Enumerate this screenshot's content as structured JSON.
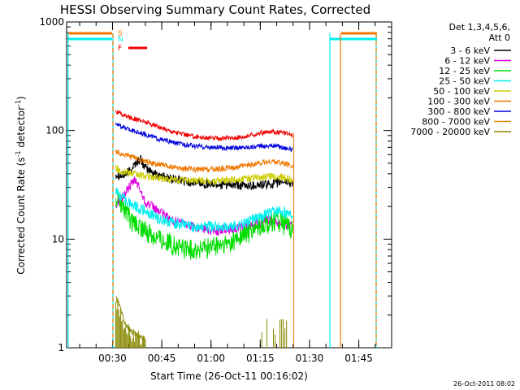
{
  "chart_data": {
    "type": "line",
    "title": "HESSI Observing Summary Count Rates, Corrected",
    "xlabel": "Start Time (26-Oct-11 00:16:02)",
    "ylabel_main": "Corrected Count Rate (s",
    "ylabel_sup1": "-1",
    "ylabel_mid": " detector",
    "ylabel_sup2": "-1",
    "ylabel_end": ")",
    "yscale": "log",
    "ylim": [
      1,
      1000
    ],
    "xlim_minutes": [
      16.03,
      115
    ],
    "x_ticks": [
      {
        "label": "00:30",
        "min": 30
      },
      {
        "label": "00:45",
        "min": 45
      },
      {
        "label": "01:00",
        "min": 60
      },
      {
        "label": "01:15",
        "min": 75
      },
      {
        "label": "01:30",
        "min": 90
      },
      {
        "label": "01:45",
        "min": 105
      }
    ],
    "y_ticks": [
      {
        "label": "1",
        "v": 1
      },
      {
        "label": "10",
        "v": 10
      },
      {
        "label": "100",
        "v": 100
      },
      {
        "label": "1000",
        "v": 1000
      }
    ],
    "legend_header": [
      "Det 1,3,4,5,6,",
      "Att 0"
    ],
    "series": [
      {
        "name": "3 - 6 keV",
        "color": "#000000",
        "values": [
          [
            31,
            40
          ],
          [
            33,
            38
          ],
          [
            35,
            42
          ],
          [
            37,
            50
          ],
          [
            38.5,
            55
          ],
          [
            40,
            45
          ],
          [
            43,
            40
          ],
          [
            48,
            36
          ],
          [
            55,
            33
          ],
          [
            62,
            32
          ],
          [
            70,
            31
          ],
          [
            78,
            32
          ],
          [
            82,
            34
          ],
          [
            85,
            33
          ]
        ]
      },
      {
        "name": "6 - 12 keV",
        "color": "#dd00dd",
        "values": [
          [
            31,
            20
          ],
          [
            33,
            24
          ],
          [
            35,
            30
          ],
          [
            37,
            35
          ],
          [
            38.5,
            28
          ],
          [
            40,
            22
          ],
          [
            43,
            19
          ],
          [
            48,
            15
          ],
          [
            55,
            13
          ],
          [
            62,
            12
          ],
          [
            70,
            13
          ],
          [
            78,
            15
          ],
          [
            82,
            14
          ],
          [
            85,
            13
          ]
        ]
      },
      {
        "name": "12 - 25 keV",
        "color": "#00dd00",
        "values": [
          [
            31,
            25
          ],
          [
            33,
            20
          ],
          [
            36,
            14
          ],
          [
            40,
            12
          ],
          [
            45,
            10
          ],
          [
            50,
            8.5
          ],
          [
            55,
            8
          ],
          [
            60,
            8.5
          ],
          [
            65,
            9
          ],
          [
            70,
            11
          ],
          [
            75,
            13
          ],
          [
            79,
            15
          ],
          [
            82,
            14
          ],
          [
            85,
            12
          ]
        ]
      },
      {
        "name": "25 - 50 keV",
        "color": "#00eeee",
        "values": [
          [
            31,
            28
          ],
          [
            33,
            24
          ],
          [
            36,
            21
          ],
          [
            40,
            18
          ],
          [
            45,
            15
          ],
          [
            50,
            14
          ],
          [
            55,
            13
          ],
          [
            60,
            13
          ],
          [
            65,
            13
          ],
          [
            70,
            14
          ],
          [
            75,
            16
          ],
          [
            79,
            18
          ],
          [
            82,
            18
          ],
          [
            85,
            17
          ]
        ]
      },
      {
        "name": "50 - 100 keV",
        "color": "#cccc00",
        "values": [
          [
            31,
            45
          ],
          [
            33,
            42
          ],
          [
            36,
            40
          ],
          [
            40,
            38
          ],
          [
            45,
            36
          ],
          [
            50,
            35
          ],
          [
            55,
            35
          ],
          [
            60,
            34
          ],
          [
            65,
            35
          ],
          [
            70,
            36
          ],
          [
            75,
            37
          ],
          [
            79,
            38
          ],
          [
            82,
            37
          ],
          [
            85,
            35
          ]
        ]
      },
      {
        "name": "100 - 300 keV",
        "color": "#ee7700",
        "values": [
          [
            31,
            65
          ],
          [
            33,
            60
          ],
          [
            36,
            57
          ],
          [
            40,
            52
          ],
          [
            45,
            48
          ],
          [
            50,
            45
          ],
          [
            55,
            44
          ],
          [
            60,
            44
          ],
          [
            65,
            45
          ],
          [
            70,
            47
          ],
          [
            75,
            50
          ],
          [
            79,
            52
          ],
          [
            82,
            50
          ],
          [
            85,
            47
          ]
        ]
      },
      {
        "name": "300 - 800 keV",
        "color": "#0000dd",
        "values": [
          [
            31,
            115
          ],
          [
            33,
            108
          ],
          [
            36,
            100
          ],
          [
            40,
            92
          ],
          [
            45,
            82
          ],
          [
            50,
            76
          ],
          [
            55,
            72
          ],
          [
            60,
            70
          ],
          [
            65,
            69
          ],
          [
            70,
            70
          ],
          [
            75,
            72
          ],
          [
            79,
            73
          ],
          [
            82,
            70
          ],
          [
            85,
            67
          ]
        ]
      },
      {
        "name": "800 - 7000 keV",
        "color": "#dd8800",
        "values": [
          [
            31,
            1
          ],
          [
            31.01,
            1
          ]
        ]
      },
      {
        "name": "7000 - 20000 keV",
        "color": "#888800",
        "values": [
          [
            31,
            2.9
          ],
          [
            32,
            2.5
          ],
          [
            33,
            2
          ],
          [
            34,
            1.6
          ],
          [
            36,
            1.4
          ],
          [
            38,
            1.3
          ],
          [
            40,
            1.2
          ]
        ]
      },
      {
        "name": "",
        "color": "#ee0000",
        "values": [
          [
            31,
            150
          ],
          [
            33,
            140
          ],
          [
            36,
            130
          ],
          [
            40,
            120
          ],
          [
            45,
            105
          ],
          [
            50,
            95
          ],
          [
            55,
            88
          ],
          [
            60,
            85
          ],
          [
            65,
            85
          ],
          [
            70,
            88
          ],
          [
            75,
            95
          ],
          [
            79,
            98
          ],
          [
            82,
            95
          ],
          [
            85,
            90
          ]
        ]
      }
    ],
    "flag_labels": [
      {
        "text": "S",
        "color": "#ee7700"
      },
      {
        "text": "N",
        "color": "#00eeee"
      },
      {
        "text": "F",
        "color": "#ee0000"
      }
    ],
    "timestamp": "26-Oct-2011 08:02"
  }
}
